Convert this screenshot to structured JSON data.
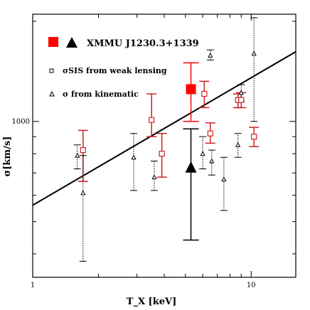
{
  "chart_data": {
    "type": "scatter",
    "title": "",
    "xlabel": "T_X [keV]",
    "ylabel": "σ[km/s]",
    "xscale": "log",
    "yscale": "log",
    "xlim": [
      1,
      16
    ],
    "ylim": [
      340,
      2100
    ],
    "xticks": [
      1,
      10
    ],
    "xtick_labels": [
      "1",
      "10"
    ],
    "yticks": [
      1000
    ],
    "ytick_labels": [
      "1000"
    ],
    "grid": false,
    "legend_position": "top-left",
    "legend": {
      "cluster_label": "XMMU J1230.3+1339",
      "weak_lensing_label": "σSIS from weak lensing",
      "kinematic_label": "σ from kinematic"
    },
    "colors": {
      "highlight": "#ff0000",
      "weak_lensing": "#cc2222",
      "kinematic": "#000000"
    },
    "fit_line": {
      "x": [
        1.0,
        16.0
      ],
      "y": [
        560,
        1620
      ]
    },
    "series": [
      {
        "name": "XMMU J1230.3+1339 (weak lensing)",
        "marker": "filled-square",
        "color": "#ff0000",
        "points": [
          {
            "x": 5.3,
            "y": 1250,
            "ylo": 1000,
            "yhi": 1500
          }
        ]
      },
      {
        "name": "XMMU J1230.3+1339 (kinematic)",
        "marker": "filled-triangle",
        "color": "#000000",
        "points": [
          {
            "x": 5.3,
            "y": 730,
            "ylo": 440,
            "yhi": 950
          }
        ]
      },
      {
        "name": "σSIS from weak lensing",
        "marker": "open-square",
        "color": "#cc2222",
        "points": [
          {
            "x": 1.7,
            "y": 820,
            "ylo": 660,
            "yhi": 940
          },
          {
            "x": 3.5,
            "y": 1010,
            "ylo": 900,
            "yhi": 1210
          },
          {
            "x": 3.9,
            "y": 800,
            "ylo": 680,
            "yhi": 920
          },
          {
            "x": 6.1,
            "y": 1210,
            "ylo": 1100,
            "yhi": 1320
          },
          {
            "x": 6.5,
            "y": 920,
            "ylo": 860,
            "yhi": 990
          },
          {
            "x": 8.7,
            "y": 1160,
            "ylo": 1100,
            "yhi": 1210
          },
          {
            "x": 9.0,
            "y": 1160,
            "ylo": 1100,
            "yhi": 1220
          },
          {
            "x": 10.3,
            "y": 900,
            "ylo": 840,
            "yhi": 960
          }
        ]
      },
      {
        "name": "σ from kinematic",
        "marker": "open-triangle",
        "color": "#000000",
        "points": [
          {
            "x": 1.6,
            "y": 790,
            "ylo": 720,
            "yhi": 850
          },
          {
            "x": 1.7,
            "y": 610,
            "ylo": 380,
            "yhi": 790
          },
          {
            "x": 2.9,
            "y": 780,
            "ylo": 620,
            "yhi": 920
          },
          {
            "x": 3.6,
            "y": 680,
            "ylo": 620,
            "yhi": 760
          },
          {
            "x": 6.0,
            "y": 800,
            "ylo": 720,
            "yhi": 900
          },
          {
            "x": 6.5,
            "y": 1580,
            "ylo": 1530,
            "yhi": 1640
          },
          {
            "x": 6.6,
            "y": 760,
            "ylo": 690,
            "yhi": 820
          },
          {
            "x": 7.5,
            "y": 670,
            "ylo": 540,
            "yhi": 780
          },
          {
            "x": 8.7,
            "y": 850,
            "ylo": 780,
            "yhi": 920
          },
          {
            "x": 9.0,
            "y": 1220,
            "ylo": 1150,
            "yhi": 1290
          },
          {
            "x": 10.3,
            "y": 1600,
            "ylo": 1000,
            "yhi": 2050
          }
        ]
      }
    ]
  }
}
